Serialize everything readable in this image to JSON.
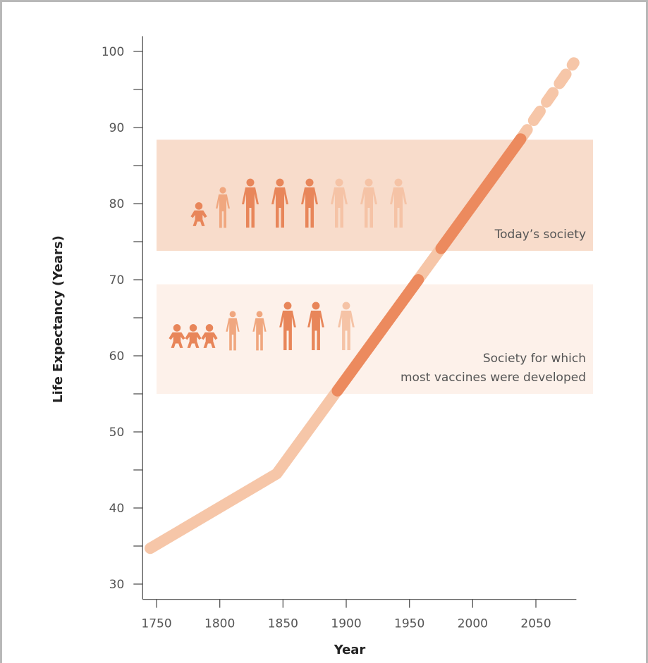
{
  "chart_data": {
    "type": "line",
    "xlabel": "Year",
    "ylabel": "Life Expectancy (Years)",
    "xlim": [
      1739,
      2082
    ],
    "ylim": [
      28,
      102
    ],
    "xticks": [
      1750,
      1800,
      1850,
      1900,
      1950,
      2000,
      2050
    ],
    "yticks": [
      30,
      40,
      50,
      60,
      70,
      80,
      90,
      100
    ],
    "yminorticks": [
      35,
      45,
      55,
      65,
      75,
      85,
      95
    ],
    "bands": [
      {
        "lines": [
          "Today’s society"
        ],
        "ylim": [
          73.8,
          88.4
        ],
        "color": "#f8dccb"
      },
      {
        "lines": [
          "Society for which",
          "most vaccines were developed"
        ],
        "ylim": [
          55,
          69.4
        ],
        "color": "#fdf1ea"
      }
    ],
    "series": [
      {
        "x": [
          1745,
          1845,
          2038
        ],
        "values": [
          34.7,
          44.5,
          88.5
        ],
        "color": "#f6c6a8",
        "style": "solid"
      },
      {
        "x": [
          2038,
          2080
        ],
        "values": [
          88.5,
          98.5
        ],
        "color": "#f6c6a8",
        "style": "dashed"
      },
      {
        "x": [
          1893,
          1957
        ],
        "values": [
          55.4,
          70.0
        ],
        "color": "#ec8a5e",
        "style": "solid"
      },
      {
        "x": [
          1975,
          2038
        ],
        "values": [
          74.1,
          88.5
        ],
        "color": "#ec8a5e",
        "style": "solid"
      }
    ]
  }
}
